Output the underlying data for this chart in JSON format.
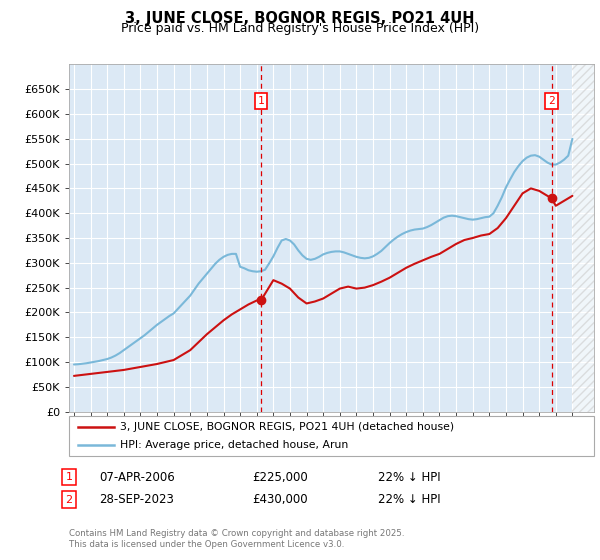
{
  "title": "3, JUNE CLOSE, BOGNOR REGIS, PO21 4UH",
  "subtitle": "Price paid vs. HM Land Registry's House Price Index (HPI)",
  "ylim": [
    0,
    700000
  ],
  "yticks": [
    0,
    50000,
    100000,
    150000,
    200000,
    250000,
    300000,
    350000,
    400000,
    450000,
    500000,
    550000,
    600000,
    650000
  ],
  "xlim_start": 1994.7,
  "xlim_end": 2026.3,
  "background_color": "#ffffff",
  "plot_bg_color": "#dce9f5",
  "grid_color": "#ffffff",
  "hpi_color": "#7ab8d9",
  "price_color": "#cc1111",
  "sale1_x": 2006.27,
  "sale2_x": 2023.745,
  "copyright_text": "Contains HM Land Registry data © Crown copyright and database right 2025.\nThis data is licensed under the Open Government Licence v3.0.",
  "legend_label1": "3, JUNE CLOSE, BOGNOR REGIS, PO21 4UH (detached house)",
  "legend_label2": "HPI: Average price, detached house, Arun",
  "annot1_date": "07-APR-2006",
  "annot1_price": "£225,000",
  "annot1_hpi": "22% ↓ HPI",
  "annot2_date": "28-SEP-2023",
  "annot2_price": "£430,000",
  "annot2_hpi": "22% ↓ HPI",
  "hpi_years": [
    1995.0,
    1995.25,
    1995.5,
    1995.75,
    1996.0,
    1996.25,
    1996.5,
    1996.75,
    1997.0,
    1997.25,
    1997.5,
    1997.75,
    1998.0,
    1998.25,
    1998.5,
    1998.75,
    1999.0,
    1999.25,
    1999.5,
    1999.75,
    2000.0,
    2000.25,
    2000.5,
    2000.75,
    2001.0,
    2001.25,
    2001.5,
    2001.75,
    2002.0,
    2002.25,
    2002.5,
    2002.75,
    2003.0,
    2003.25,
    2003.5,
    2003.75,
    2004.0,
    2004.25,
    2004.5,
    2004.75,
    2005.0,
    2005.25,
    2005.5,
    2005.75,
    2006.0,
    2006.25,
    2006.5,
    2006.75,
    2007.0,
    2007.25,
    2007.5,
    2007.75,
    2008.0,
    2008.25,
    2008.5,
    2008.75,
    2009.0,
    2009.25,
    2009.5,
    2009.75,
    2010.0,
    2010.25,
    2010.5,
    2010.75,
    2011.0,
    2011.25,
    2011.5,
    2011.75,
    2012.0,
    2012.25,
    2012.5,
    2012.75,
    2013.0,
    2013.25,
    2013.5,
    2013.75,
    2014.0,
    2014.25,
    2014.5,
    2014.75,
    2015.0,
    2015.25,
    2015.5,
    2015.75,
    2016.0,
    2016.25,
    2016.5,
    2016.75,
    2017.0,
    2017.25,
    2017.5,
    2017.75,
    2018.0,
    2018.25,
    2018.5,
    2018.75,
    2019.0,
    2019.25,
    2019.5,
    2019.75,
    2020.0,
    2020.25,
    2020.5,
    2020.75,
    2021.0,
    2021.25,
    2021.5,
    2021.75,
    2022.0,
    2022.25,
    2022.5,
    2022.75,
    2023.0,
    2023.25,
    2023.5,
    2023.75,
    2024.0,
    2024.25,
    2024.5,
    2024.75,
    2025.0
  ],
  "hpi_values": [
    95000,
    95500,
    96500,
    97500,
    99000,
    100500,
    102000,
    104000,
    106000,
    109000,
    113000,
    118000,
    124000,
    130000,
    136000,
    142000,
    148000,
    154000,
    161000,
    168000,
    175000,
    181000,
    187000,
    193000,
    198000,
    207000,
    216000,
    225000,
    234000,
    246000,
    258000,
    268000,
    278000,
    288000,
    298000,
    306000,
    312000,
    316000,
    318000,
    318000,
    292000,
    289000,
    285000,
    283000,
    282000,
    283000,
    286000,
    299000,
    313000,
    330000,
    345000,
    348000,
    345000,
    337000,
    325000,
    315000,
    308000,
    306000,
    308000,
    312000,
    317000,
    320000,
    322000,
    323000,
    323000,
    321000,
    318000,
    315000,
    312000,
    310000,
    309000,
    310000,
    313000,
    318000,
    324000,
    332000,
    340000,
    347000,
    353000,
    358000,
    362000,
    365000,
    367000,
    368000,
    369000,
    372000,
    376000,
    381000,
    386000,
    391000,
    394000,
    395000,
    394000,
    392000,
    390000,
    388000,
    387000,
    388000,
    390000,
    392000,
    393000,
    400000,
    415000,
    432000,
    452000,
    468000,
    483000,
    495000,
    505000,
    512000,
    516000,
    517000,
    514000,
    508000,
    502000,
    498000,
    498000,
    502000,
    508000,
    516000,
    550000
  ],
  "price_years": [
    1995.0,
    1996.0,
    1997.0,
    1998.0,
    1999.0,
    2000.0,
    2001.0,
    2001.5,
    2002.0,
    2002.5,
    2003.0,
    2003.5,
    2004.0,
    2004.5,
    2005.0,
    2005.5,
    2006.0,
    2006.27,
    2007.0,
    2007.5,
    2008.0,
    2008.5,
    2009.0,
    2009.5,
    2010.0,
    2010.5,
    2011.0,
    2011.5,
    2012.0,
    2012.5,
    2013.0,
    2013.5,
    2014.0,
    2014.5,
    2015.0,
    2015.5,
    2016.0,
    2016.5,
    2017.0,
    2017.5,
    2018.0,
    2018.5,
    2019.0,
    2019.5,
    2020.0,
    2020.5,
    2021.0,
    2021.5,
    2022.0,
    2022.5,
    2023.0,
    2023.745,
    2024.0,
    2024.5,
    2025.0
  ],
  "price_values": [
    72000,
    76000,
    80000,
    84000,
    90000,
    96000,
    104000,
    114000,
    124000,
    140000,
    156000,
    170000,
    184000,
    196000,
    206000,
    216000,
    224000,
    225000,
    265000,
    258000,
    248000,
    230000,
    218000,
    222000,
    228000,
    238000,
    248000,
    252000,
    248000,
    250000,
    255000,
    262000,
    270000,
    280000,
    290000,
    298000,
    305000,
    312000,
    318000,
    328000,
    338000,
    346000,
    350000,
    355000,
    358000,
    370000,
    390000,
    415000,
    440000,
    450000,
    445000,
    430000,
    415000,
    425000,
    435000
  ]
}
